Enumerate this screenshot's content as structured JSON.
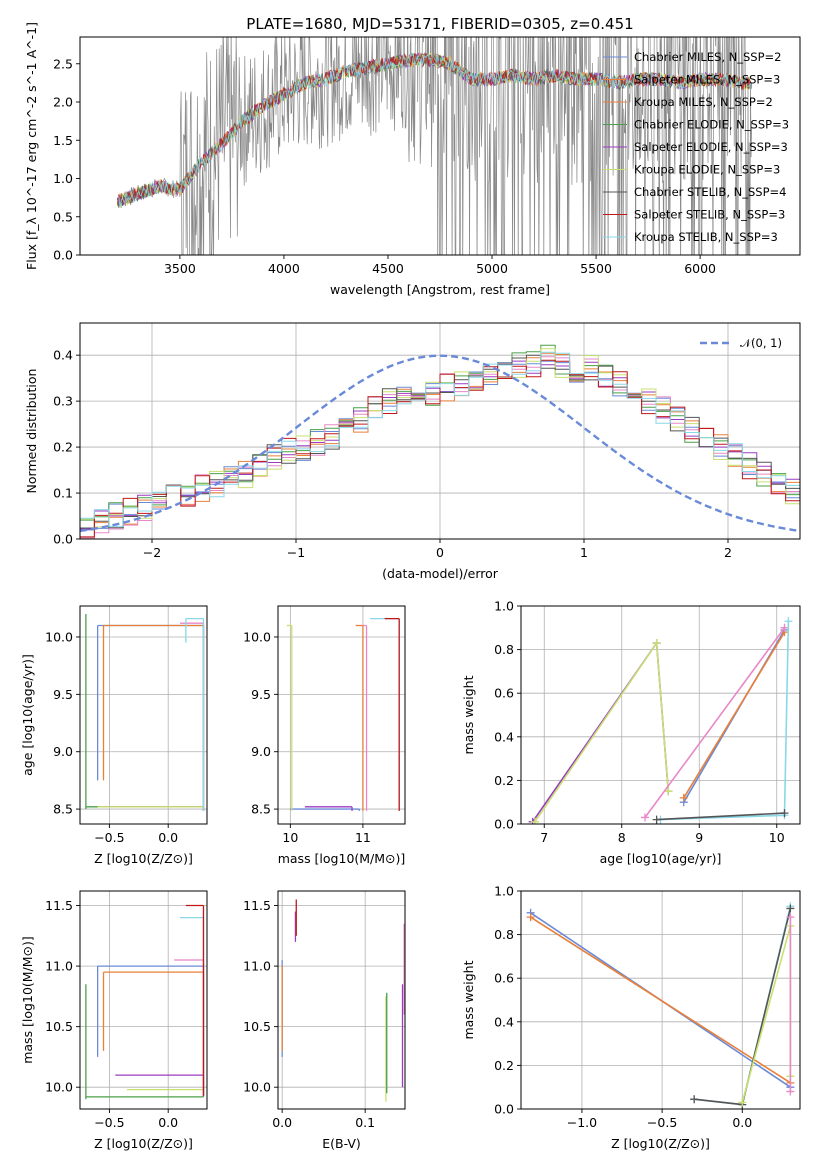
{
  "figure": {
    "title": "PLATE=1680, MJD=53171, FIBERID=0305, z=0.451",
    "colors": [
      "#6a8ad8",
      "#e8803a",
      "#4aa04a",
      "#9a3cc0",
      "#e888c8",
      "#c8e070",
      "#555555",
      "#c01818",
      "#88d8e8",
      "#888888"
    ]
  },
  "chart_data": [
    {
      "id": "spectrum",
      "type": "line",
      "title": "PLATE=1680, MJD=53171, FIBERID=0305, z=0.451",
      "xlabel": "wavelength [Angstrom, rest frame]",
      "ylabel": "Flux [f_λ 10^-17 erg cm^-2 s^-1 A^-1]",
      "xlim": [
        3020,
        6480
      ],
      "ylim": [
        0,
        2.85
      ],
      "xticks": [
        3500,
        4000,
        4500,
        5000,
        5500,
        6000
      ],
      "yticks": [
        0.0,
        0.5,
        1.0,
        1.5,
        2.0,
        2.5
      ],
      "grid": false,
      "legend_position": "top-right",
      "observed_spectrum_color": "#888888",
      "model_continuum": [
        [
          3200,
          0.7
        ],
        [
          3300,
          0.8
        ],
        [
          3400,
          0.9
        ],
        [
          3500,
          0.85
        ],
        [
          3600,
          1.2
        ],
        [
          3700,
          1.45
        ],
        [
          3800,
          1.75
        ],
        [
          3900,
          1.95
        ],
        [
          4000,
          2.1
        ],
        [
          4100,
          2.25
        ],
        [
          4200,
          2.3
        ],
        [
          4300,
          2.4
        ],
        [
          4400,
          2.45
        ],
        [
          4500,
          2.5
        ],
        [
          4600,
          2.55
        ],
        [
          4700,
          2.55
        ],
        [
          4800,
          2.5
        ],
        [
          4900,
          2.3
        ],
        [
          5000,
          2.3
        ],
        [
          5100,
          2.35
        ],
        [
          5200,
          2.3
        ],
        [
          5300,
          2.35
        ],
        [
          5400,
          2.3
        ],
        [
          5500,
          2.3
        ],
        [
          5600,
          2.25
        ],
        [
          5700,
          2.3
        ],
        [
          5800,
          2.3
        ],
        [
          5900,
          2.25
        ],
        [
          6000,
          2.3
        ],
        [
          6100,
          2.3
        ],
        [
          6200,
          2.25
        ],
        [
          6250,
          2.25
        ]
      ],
      "series": [
        {
          "name": "Chabrier MILES, N_SSP=2",
          "color": "#6a8ad8"
        },
        {
          "name": "Salpeter MILES, N_SSP=3",
          "color": "#e8803a"
        },
        {
          "name": "Kroupa MILES, N_SSP=2",
          "color": "#e8803a"
        },
        {
          "name": "Chabrier ELODIE, N_SSP=3",
          "color": "#4aa04a"
        },
        {
          "name": "Salpeter ELODIE, N_SSP=3",
          "color": "#9a3cc0"
        },
        {
          "name": "Kroupa ELODIE, N_SSP=3",
          "color": "#c8e070"
        },
        {
          "name": "Chabrier STELIB, N_SSP=4",
          "color": "#555555"
        },
        {
          "name": "Salpeter STELIB, N_SSP=3",
          "color": "#c01818"
        },
        {
          "name": "Kroupa STELIB, N_SSP=3",
          "color": "#88d8e8"
        }
      ]
    },
    {
      "id": "residuals",
      "type": "line",
      "xlabel": "(data-model)/error",
      "ylabel": "Normed distribution",
      "xlim": [
        -2.5,
        2.5
      ],
      "ylim": [
        0,
        0.47
      ],
      "xticks": [
        -2,
        -1,
        0,
        1,
        2
      ],
      "yticks": [
        0.0,
        0.1,
        0.2,
        0.3,
        0.4
      ],
      "grid": true,
      "legend_position": "top-right",
      "legend_label": "𝒩(0, 1)",
      "normal_color": "#6a8ad8",
      "bin_width": 0.1,
      "histogram_base": [
        0.03,
        0.04,
        0.05,
        0.06,
        0.07,
        0.08,
        0.09,
        0.1,
        0.11,
        0.12,
        0.13,
        0.14,
        0.16,
        0.18,
        0.19,
        0.2,
        0.21,
        0.22,
        0.24,
        0.26,
        0.28,
        0.3,
        0.31,
        0.31,
        0.32,
        0.33,
        0.34,
        0.35,
        0.36,
        0.37,
        0.38,
        0.38,
        0.4,
        0.38,
        0.37,
        0.37,
        0.36,
        0.34,
        0.32,
        0.3,
        0.28,
        0.26,
        0.24,
        0.22,
        0.2,
        0.18,
        0.16,
        0.14,
        0.12,
        0.1
      ]
    },
    {
      "id": "age-vs-Z",
      "type": "scatter",
      "xlabel": "Z [log10(Z/Z⊙)]",
      "ylabel": "age [log10(age/yr)]",
      "xlim": [
        -0.75,
        0.33
      ],
      "ylim": [
        8.37,
        10.27
      ],
      "xticks": [
        -0.5,
        0.0
      ],
      "yticks": [
        8.5,
        9.0,
        9.5,
        10.0
      ],
      "grid": true,
      "segments": [
        {
          "c": 0,
          "x": [
            -0.6,
            0.3
          ],
          "y": 10.1,
          "yerr": [
            8.75,
            10.1
          ]
        },
        {
          "c": 1,
          "x": [
            -0.55,
            0.3
          ],
          "y": 10.1,
          "yerr": [
            8.75,
            10.1
          ]
        },
        {
          "c": 2,
          "x": [
            -0.7,
            0.3
          ],
          "y": 8.52,
          "yerr": [
            8.5,
            10.2
          ]
        },
        {
          "c": 3,
          "x": [
            -0.55,
            0.3
          ],
          "y": 8.52
        },
        {
          "c": 5,
          "x": [
            -0.6,
            0.3
          ],
          "y": 8.52
        },
        {
          "c": 4,
          "x": [
            0.1,
            0.3
          ],
          "y": 10.12
        },
        {
          "c": 8,
          "x": [
            0.15,
            0.3
          ],
          "y": 10.16,
          "yerr": [
            9.95,
            10.16
          ]
        }
      ]
    },
    {
      "id": "age-vs-mass",
      "type": "scatter",
      "xlabel": "mass [log10(M/M⊙)]",
      "ylabel": "",
      "xlim": [
        9.83,
        11.58
      ],
      "ylim": [
        8.37,
        10.27
      ],
      "xticks": [
        10,
        11
      ],
      "yticks": [
        8.5,
        9.0,
        9.5,
        10.0
      ],
      "grid": true,
      "segments": [
        {
          "c": 0,
          "x": [
            10.0,
            10.95
          ],
          "y": 8.5,
          "xr": [
            10.95,
            10.1
          ]
        },
        {
          "c": 3,
          "x": [
            10.2,
            10.85
          ],
          "y": 8.52
        },
        {
          "c": 5,
          "x": [
            9.95,
            10.02
          ],
          "y": 10.1
        },
        {
          "c": 1,
          "x": [
            10.9,
            11.0
          ],
          "y": 10.1
        },
        {
          "c": 4,
          "x": [
            11.0,
            11.05
          ],
          "y": 10.1
        },
        {
          "c": 8,
          "x": [
            11.1,
            11.5
          ],
          "y": 10.16
        },
        {
          "c": 7,
          "x": [
            11.3,
            11.5
          ],
          "y": 10.16
        }
      ]
    },
    {
      "id": "mass-weight-vs-age",
      "type": "line",
      "xlabel": "age [log10(age/yr)]",
      "ylabel": "mass weight",
      "xlim": [
        6.7,
        10.3
      ],
      "ylim": [
        0,
        1.0
      ],
      "xticks": [
        7,
        8,
        9,
        10
      ],
      "yticks": [
        0.0,
        0.2,
        0.4,
        0.6,
        0.8,
        1.0
      ],
      "grid": true,
      "lines": [
        {
          "c": 3,
          "pts": [
            [
              6.85,
              0.01
            ],
            [
              8.45,
              0.83
            ],
            [
              8.6,
              0.15
            ]
          ]
        },
        {
          "c": 5,
          "pts": [
            [
              6.88,
              0.01
            ],
            [
              8.45,
              0.83
            ],
            [
              8.6,
              0.15
            ]
          ]
        },
        {
          "c": 0,
          "pts": [
            [
              8.8,
              0.1
            ],
            [
              10.1,
              0.89
            ]
          ]
        },
        {
          "c": 1,
          "pts": [
            [
              8.8,
              0.12
            ],
            [
              10.1,
              0.88
            ]
          ]
        },
        {
          "c": 4,
          "pts": [
            [
              8.3,
              0.03
            ],
            [
              10.1,
              0.9
            ]
          ]
        },
        {
          "c": 8,
          "pts": [
            [
              8.5,
              0.02
            ],
            [
              10.1,
              0.04
            ],
            [
              10.15,
              0.93
            ]
          ]
        },
        {
          "c": 6,
          "pts": [
            [
              8.45,
              0.02
            ],
            [
              10.1,
              0.05
            ]
          ]
        }
      ]
    },
    {
      "id": "mass-vs-Z",
      "type": "scatter",
      "xlabel": "Z [log10(Z/Z⊙)]",
      "ylabel": "mass [log10(M/M⊙)]",
      "xlim": [
        -0.75,
        0.33
      ],
      "ylim": [
        9.82,
        11.62
      ],
      "xticks": [
        -0.5,
        0.0
      ],
      "yticks": [
        10.0,
        10.5,
        11.0,
        11.5
      ],
      "grid": true,
      "segments": [
        {
          "c": 0,
          "x": [
            -0.6,
            0.3
          ],
          "y": 11.0,
          "yerr": [
            10.25,
            11.0
          ]
        },
        {
          "c": 1,
          "x": [
            -0.55,
            0.3
          ],
          "y": 10.95,
          "yerr": [
            10.3,
            10.95
          ]
        },
        {
          "c": 2,
          "x": [
            -0.7,
            0.3
          ],
          "y": 9.92,
          "yerr": [
            9.9,
            10.85
          ]
        },
        {
          "c": 3,
          "x": [
            -0.45,
            0.3
          ],
          "y": 10.1
        },
        {
          "c": 5,
          "x": [
            -0.35,
            0.3
          ],
          "y": 9.98
        },
        {
          "c": 4,
          "x": [
            0.05,
            0.3
          ],
          "y": 11.05
        },
        {
          "c": 8,
          "x": [
            0.1,
            0.3
          ],
          "y": 11.4
        },
        {
          "c": 7,
          "x": [
            0.15,
            0.3
          ],
          "y": 11.5
        }
      ]
    },
    {
      "id": "mass-vs-EBV",
      "type": "scatter",
      "xlabel": "E(B-V)",
      "ylabel": "",
      "xlim": [
        -0.005,
        0.148
      ],
      "ylim": [
        9.82,
        11.62
      ],
      "xticks": [
        0.0,
        0.1
      ],
      "yticks": [
        10.0,
        10.5,
        11.0,
        11.5
      ],
      "grid": true,
      "segments": [
        {
          "c": 0,
          "x": 0.0,
          "yr": [
            10.25,
            11.05
          ]
        },
        {
          "c": 1,
          "x": 0.0,
          "yr": [
            10.3,
            11.0
          ]
        },
        {
          "c": 3,
          "x": 0.016,
          "yr": [
            11.2,
            11.45
          ]
        },
        {
          "c": 7,
          "x": 0.017,
          "yr": [
            11.25,
            11.55
          ]
        },
        {
          "c": 5,
          "x": 0.125,
          "yr": [
            9.88,
            10.75
          ]
        },
        {
          "c": 2,
          "x": 0.126,
          "yr": [
            9.95,
            10.78
          ]
        },
        {
          "c": 3,
          "x": 0.145,
          "yr": [
            10.0,
            10.85
          ]
        },
        {
          "c": 4,
          "x": 0.147,
          "yr": [
            10.6,
            11.35
          ]
        }
      ]
    },
    {
      "id": "mass-weight-vs-Z",
      "type": "line",
      "xlabel": "Z [log10(Z/Z⊙)]",
      "ylabel": "mass weight",
      "xlim": [
        -1.38,
        0.36
      ],
      "ylim": [
        0,
        1.0
      ],
      "xticks": [
        -1.0,
        -0.5,
        0.0
      ],
      "yticks": [
        0.0,
        0.2,
        0.4,
        0.6,
        0.8,
        1.0
      ],
      "grid": true,
      "lines": [
        {
          "c": 0,
          "pts": [
            [
              -1.32,
              0.9
            ],
            [
              0.3,
              0.1
            ]
          ]
        },
        {
          "c": 1,
          "pts": [
            [
              -1.32,
              0.88
            ],
            [
              0.3,
              0.12
            ]
          ]
        },
        {
          "c": 8,
          "pts": [
            [
              -0.3,
              0.045
            ],
            [
              0.0,
              0.02
            ],
            [
              0.3,
              0.93
            ]
          ]
        },
        {
          "c": 6,
          "pts": [
            [
              -0.3,
              0.045
            ],
            [
              0.0,
              0.02
            ],
            [
              0.3,
              0.92
            ]
          ]
        },
        {
          "c": 5,
          "pts": [
            [
              0.0,
              0.03
            ],
            [
              0.3,
              0.84
            ],
            [
              0.3,
              0.15
            ]
          ]
        },
        {
          "c": 4,
          "pts": [
            [
              0.3,
              0.08
            ],
            [
              0.3,
              0.88
            ]
          ]
        }
      ]
    }
  ]
}
